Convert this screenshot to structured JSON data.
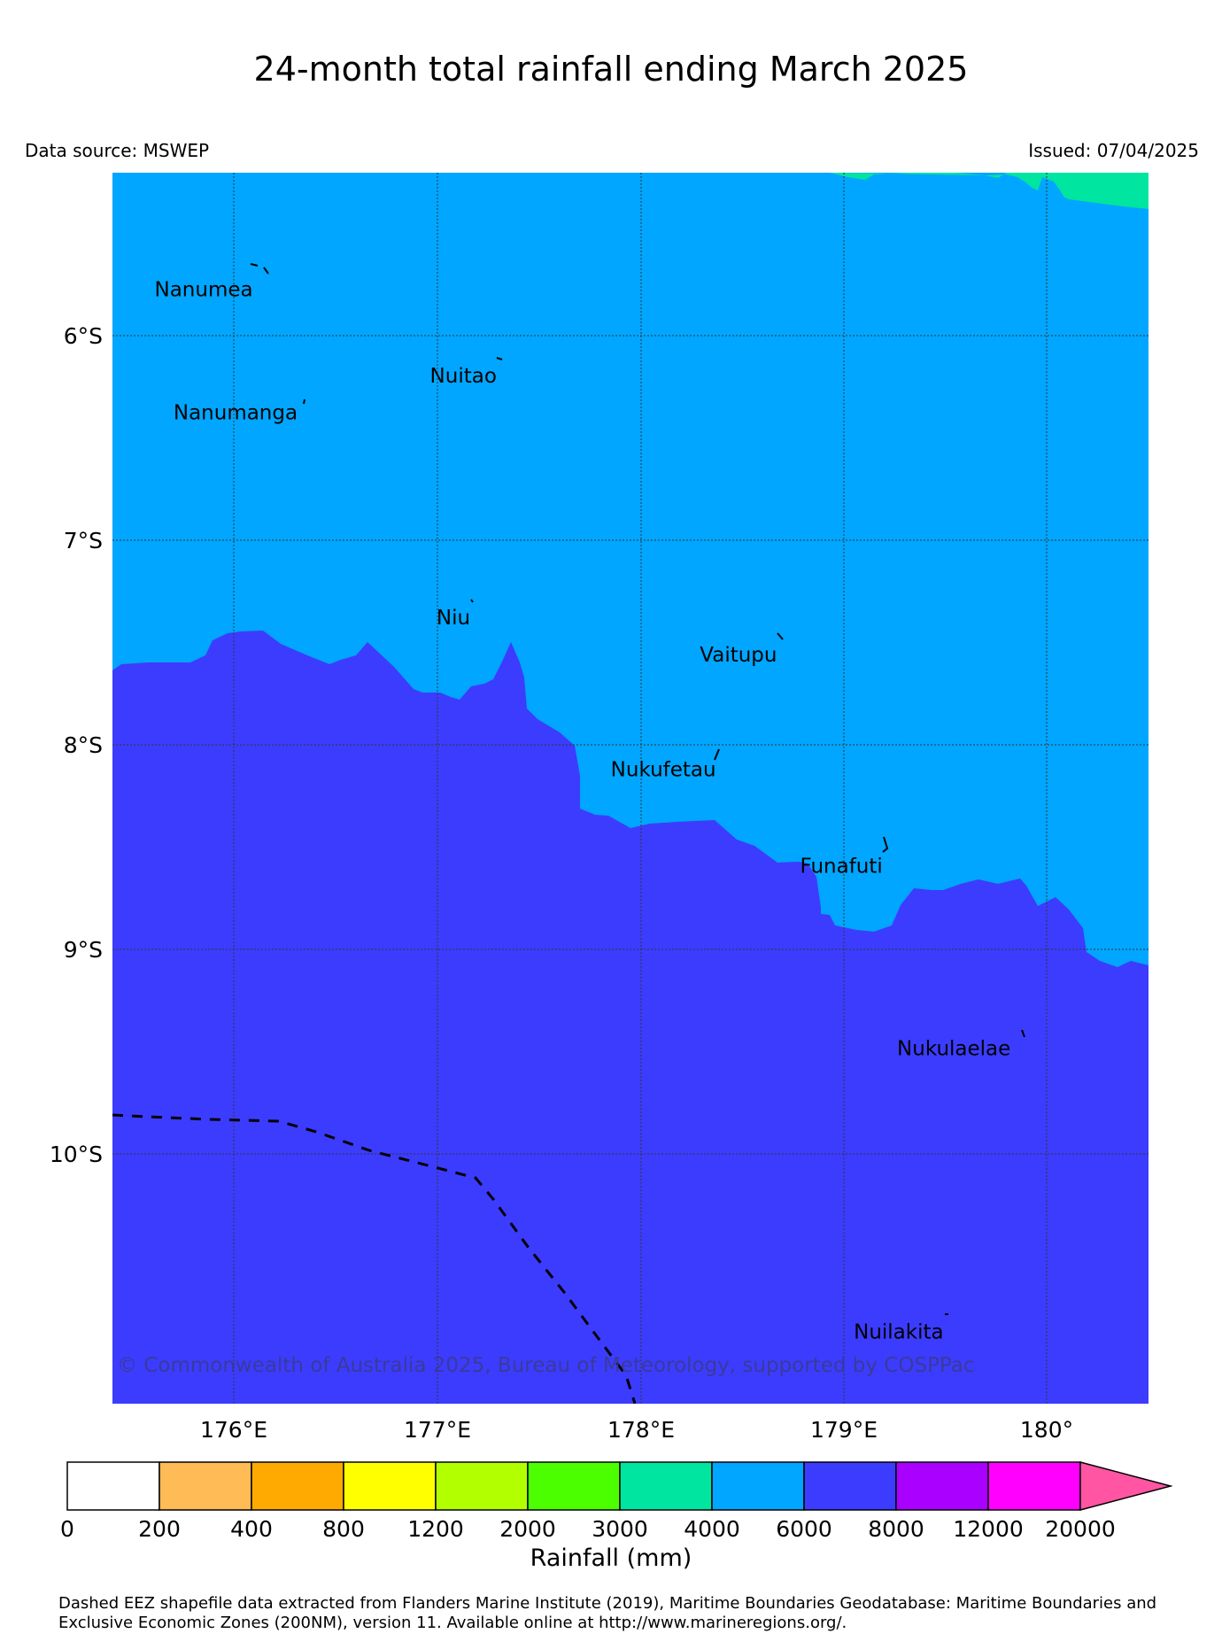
{
  "title": "24-month total rainfall ending March 2025",
  "data_source": "Data source: MSWEP",
  "issued": "Issued: 07/04/2025",
  "map": {
    "lon_range": [
      175.4,
      180.5
    ],
    "lat_range": [
      -11.2,
      -5.2
    ],
    "zone_colors": {
      "band_6000_8000": "#3c3cff",
      "band_4000_6000": "#00a6ff",
      "band_3000_4000": "#00e5a0",
      "eez_line": "#000000"
    },
    "lat_labels": [
      "6°S",
      "7°S",
      "8°S",
      "9°S",
      "10°S"
    ],
    "lon_labels": [
      "176°E",
      "177°E",
      "178°E",
      "179°E",
      "180°"
    ],
    "places": [
      {
        "name": "Nanumea",
        "lon": 176.1,
        "lat": -5.69
      },
      {
        "name": "Nuitao",
        "lon": 177.3,
        "lat": -6.11
      },
      {
        "name": "Nanumanga",
        "lon": 176.32,
        "lat": -6.29
      },
      {
        "name": "Niu",
        "lon": 177.17,
        "lat": -7.29
      },
      {
        "name": "Vaitupu",
        "lon": 178.68,
        "lat": -7.47
      },
      {
        "name": "Nukufetau",
        "lon": 178.38,
        "lat": -8.03
      },
      {
        "name": "Funafuti",
        "lon": 179.2,
        "lat": -8.5
      },
      {
        "name": "Nukulaelae",
        "lon": 179.83,
        "lat": -9.39
      },
      {
        "name": "Nuilakita",
        "lon": 179.5,
        "lat": -10.77
      }
    ],
    "copyright": "© Commonwealth of Australia 2025, Bureau of Meteorology, supported by COSPPac"
  },
  "colorbar": {
    "label": "Rainfall (mm)",
    "ticks": [
      "0",
      "200",
      "400",
      "800",
      "1200",
      "2000",
      "3000",
      "4000",
      "6000",
      "8000",
      "12000",
      "20000"
    ],
    "colors": [
      "#ffffff",
      "#ffbb55",
      "#ffaa00",
      "#ffff00",
      "#b2ff00",
      "#4cff00",
      "#00e5a0",
      "#00a6ff",
      "#3c3cff",
      "#aa00ff",
      "#ff00ff",
      "#ff55a3"
    ]
  },
  "footnote": "Dashed EEZ shapefile data extracted from Flanders Marine Institute (2019), Maritime Boundaries Geodatabase: Maritime Boundaries and Exclusive Economic Zones (200NM), version 11. Available online at http://www.marineregions.org/."
}
